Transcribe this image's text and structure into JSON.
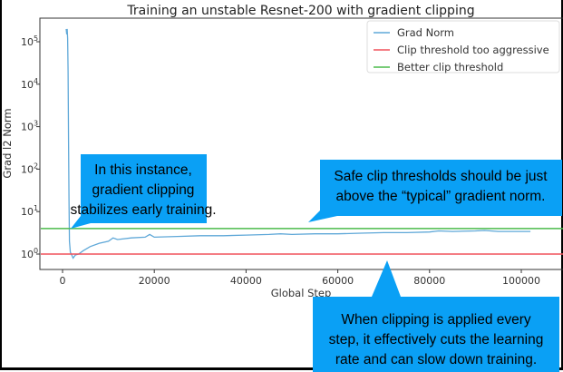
{
  "chart_data": {
    "type": "line",
    "title": "Training an unstable Resnet-200 with gradient clipping",
    "xlabel": "Global Step",
    "ylabel": "Grad l2 Norm",
    "yscale": "log",
    "xlim": [
      -5000,
      108000
    ],
    "ylim": [
      0.55,
      400000
    ],
    "xticks": [
      0,
      20000,
      40000,
      60000,
      80000,
      100000
    ],
    "xtick_labels": [
      "0",
      "20000",
      "40000",
      "60000",
      "80000",
      "100000"
    ],
    "yticks": [
      1,
      10,
      100,
      1000,
      10000,
      100000
    ],
    "ytick_labels": [
      {
        "base": "10",
        "exp": "0"
      },
      {
        "base": "10",
        "exp": "1"
      },
      {
        "base": "10",
        "exp": "2"
      },
      {
        "base": "10",
        "exp": "3"
      },
      {
        "base": "10",
        "exp": "4"
      },
      {
        "base": "10",
        "exp": "5"
      }
    ],
    "grid": false,
    "legend_position": "top-right",
    "series": [
      {
        "name": "Grad Norm",
        "color": "#5fa8d8",
        "x": [
          800,
          900,
          1000,
          1100,
          1200,
          1300,
          1400,
          1500,
          1700,
          2000,
          2300,
          2800,
          3500,
          4500,
          6000,
          8000,
          10000,
          11000,
          12000,
          15000,
          18000,
          19000,
          20000,
          25000,
          30000,
          35000,
          40000,
          45000,
          47500,
          50000,
          55000,
          60000,
          65000,
          70000,
          75000,
          80000,
          82000,
          85000,
          90000,
          92000,
          95000,
          100000,
          102000
        ],
        "y": [
          200000,
          150000,
          200000,
          120000,
          20000,
          500,
          20,
          2,
          1.1,
          0.95,
          0.8,
          0.95,
          1.0,
          1.2,
          1.5,
          1.8,
          2.0,
          2.4,
          2.2,
          2.4,
          2.5,
          2.9,
          2.5,
          2.6,
          2.7,
          2.7,
          2.8,
          2.9,
          3.0,
          2.9,
          3.0,
          3.0,
          3.1,
          3.2,
          3.2,
          3.3,
          3.5,
          3.4,
          3.5,
          3.6,
          3.4,
          3.4,
          3.4
        ]
      },
      {
        "name": "Clip threshold too aggressive",
        "color": "#f0525c",
        "constant": 1
      },
      {
        "name": "Better clip threshold",
        "color": "#4cbb4c",
        "constant": 4
      }
    ],
    "annotations": [
      {
        "text": [
          "In this instance,",
          "gradient clipping",
          "stabilizes early training."
        ],
        "color": "#0aa0f5"
      },
      {
        "text": [
          "Safe clip thresholds should be just",
          "above the “typical” gradient norm."
        ],
        "color": "#0aa0f5"
      },
      {
        "text": [
          "When clipping is applied every",
          "step, it effectively cuts the learning",
          "rate and can slow down training."
        ],
        "color": "#0aa0f5"
      }
    ]
  }
}
